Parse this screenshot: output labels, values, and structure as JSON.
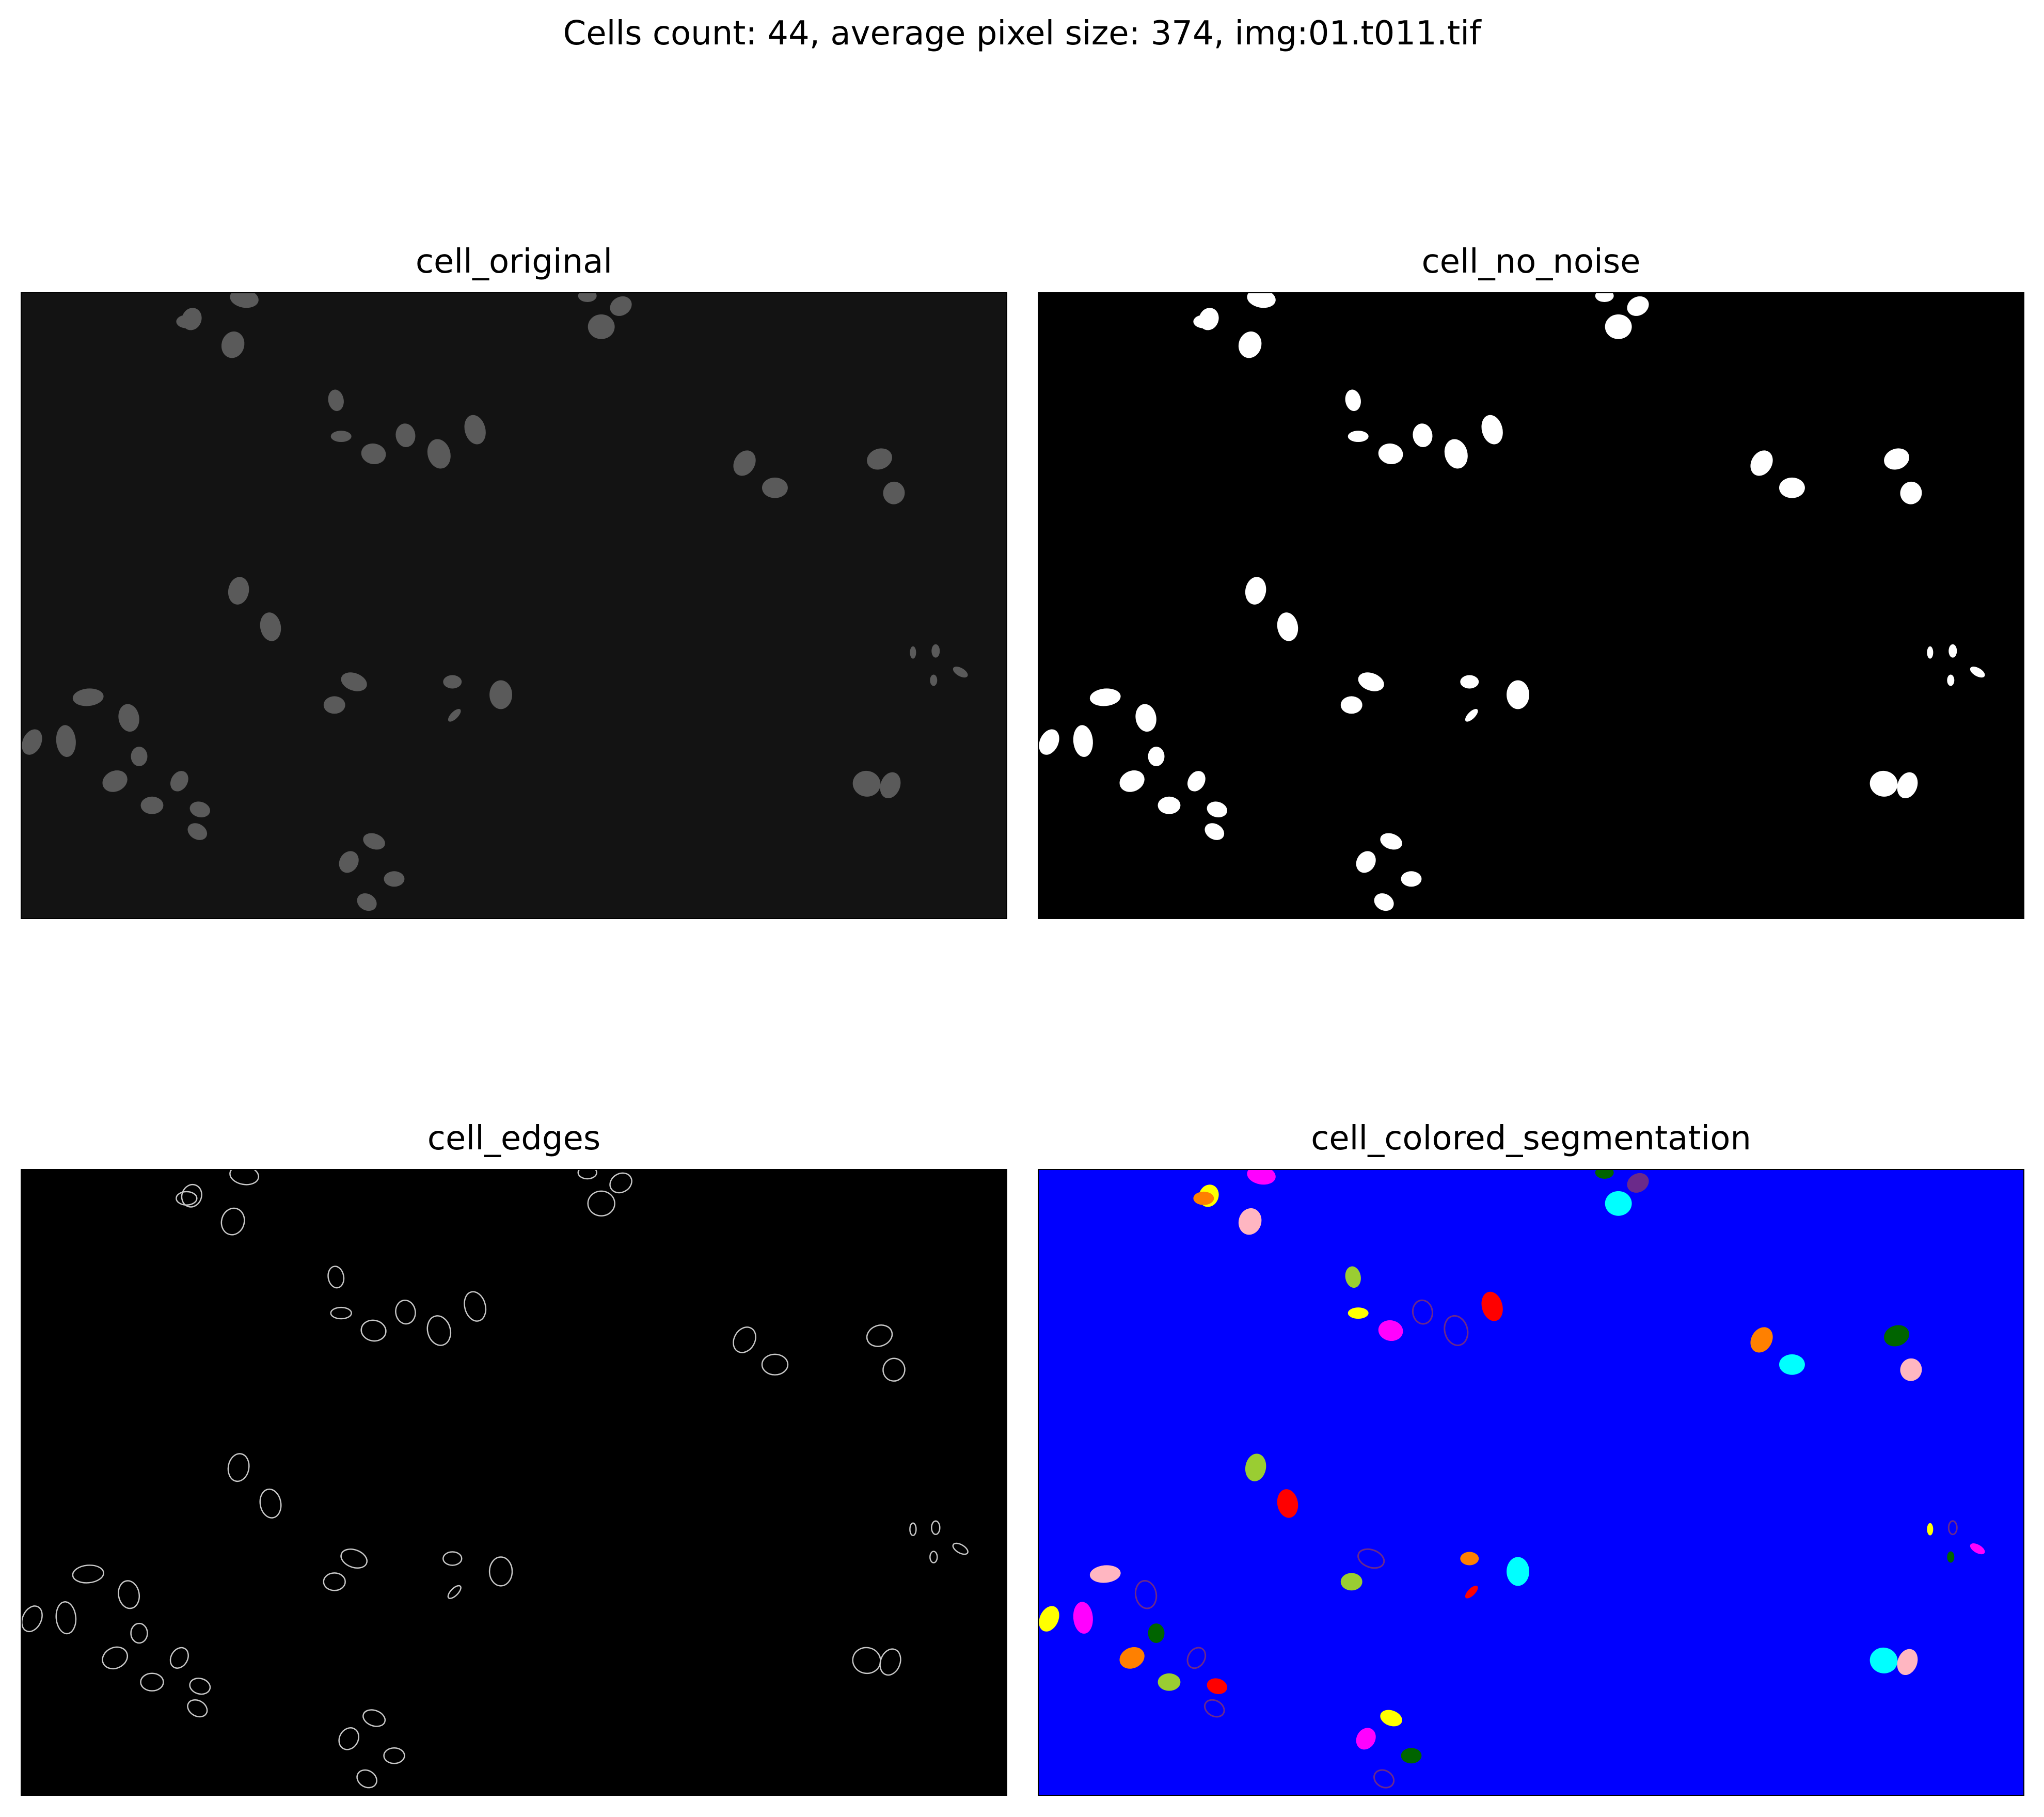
{
  "figure": {
    "title": "Cells count: 44, average pixel size: 374, img:01.t011.tif"
  },
  "panels": [
    {
      "title": "cell_original",
      "style": "original",
      "background": "#131313"
    },
    {
      "title": "cell_no_noise",
      "style": "mask",
      "background": "#000000"
    },
    {
      "title": "cell_edges",
      "style": "edges",
      "background": "#000000"
    },
    {
      "title": "cell_colored_segmentation",
      "style": "segmentation",
      "background": "#0000ff"
    }
  ],
  "colors": {
    "segmentation_palette": [
      "#ffff00",
      "#ff00ff",
      "#ff8000",
      "#ffb6c1",
      "#00ffff",
      "#9acd32",
      "#ff0000",
      "#006400",
      "#6b2a8a"
    ],
    "nucleus_gray": "#5a5a5a",
    "mask_white": "#ffffff",
    "edge_gray": "#c8c8c8"
  }
}
